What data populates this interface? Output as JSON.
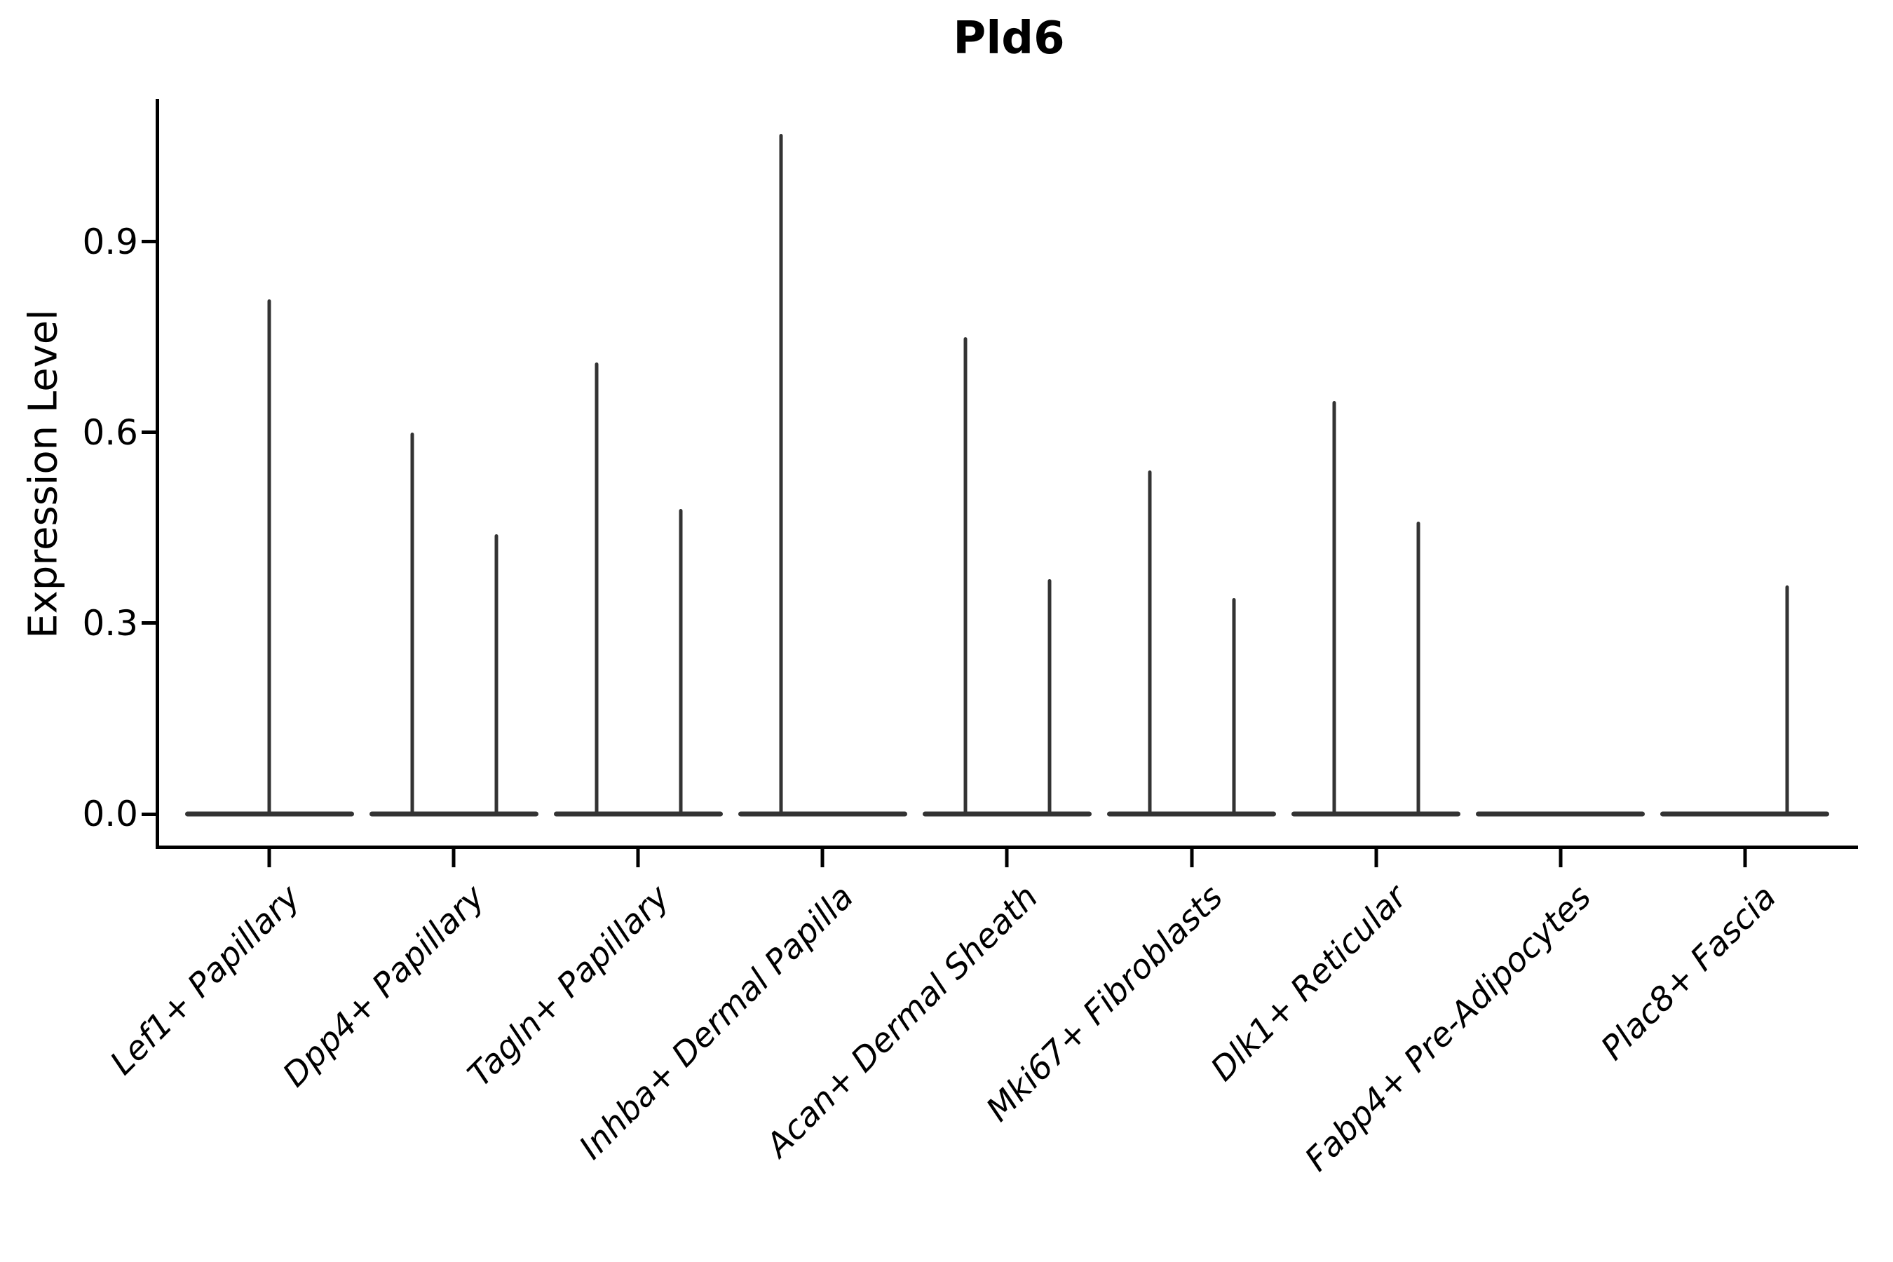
{
  "title": "Pld6",
  "axes": {
    "ylabel": "Expression Level",
    "ytick_labels": [
      "0.0",
      "0.3",
      "0.6",
      "0.9"
    ]
  },
  "colors": {
    "violin_stroke": "#333333",
    "axis": "#000000",
    "text": "#000000",
    "background": "#ffffff"
  },
  "chart_data": {
    "type": "violin",
    "title": "Pld6",
    "xlabel": "",
    "ylabel": "Expression Level",
    "yticks": [
      0.0,
      0.3,
      0.6,
      0.9
    ],
    "ylim": [
      -0.05,
      1.13
    ],
    "grid": "off",
    "legend": "none",
    "style": "collapsed violins: flat density baseline at 0 with thin spikes up to each group's maximum expression; up to two side-by-side groups per category",
    "categories": [
      "Lef1+ Papillary",
      "Dpp4+ Papillary",
      "Tagln+ Papillary",
      "Inhba+ Dermal Papilla",
      "Acan+ Dermal Sheath",
      "Mki67+ Fibroblasts",
      "Dlk1+ Reticular",
      "Fabp4+ Pre-Adipocytes",
      "Plac8+ Fascia"
    ],
    "violins": [
      {
        "category": "Lef1+ Papillary",
        "baseline": 0.0,
        "spikes": [
          {
            "position": "center",
            "max": 0.81
          }
        ]
      },
      {
        "category": "Dpp4+ Papillary",
        "baseline": 0.0,
        "spikes": [
          {
            "position": "left",
            "max": 0.6
          },
          {
            "position": "right",
            "max": 0.44
          }
        ]
      },
      {
        "category": "Tagln+ Papillary",
        "baseline": 0.0,
        "spikes": [
          {
            "position": "left",
            "max": 0.71
          },
          {
            "position": "right",
            "max": 0.48
          }
        ]
      },
      {
        "category": "Inhba+ Dermal Papilla",
        "baseline": 0.0,
        "spikes": [
          {
            "position": "left",
            "max": 1.07
          }
        ]
      },
      {
        "category": "Acan+ Dermal Sheath",
        "baseline": 0.0,
        "spikes": [
          {
            "position": "left",
            "max": 0.75
          },
          {
            "position": "right",
            "max": 0.37
          }
        ]
      },
      {
        "category": "Mki67+ Fibroblasts",
        "baseline": 0.0,
        "spikes": [
          {
            "position": "left",
            "max": 0.54
          },
          {
            "position": "right",
            "max": 0.34
          }
        ]
      },
      {
        "category": "Dlk1+ Reticular",
        "baseline": 0.0,
        "spikes": [
          {
            "position": "left",
            "max": 0.65
          },
          {
            "position": "right",
            "max": 0.46
          }
        ]
      },
      {
        "category": "Fabp4+ Pre-Adipocytes",
        "baseline": 0.0,
        "spikes": []
      },
      {
        "category": "Plac8+ Fascia",
        "baseline": 0.0,
        "spikes": [
          {
            "position": "right",
            "max": 0.36
          }
        ]
      }
    ]
  }
}
